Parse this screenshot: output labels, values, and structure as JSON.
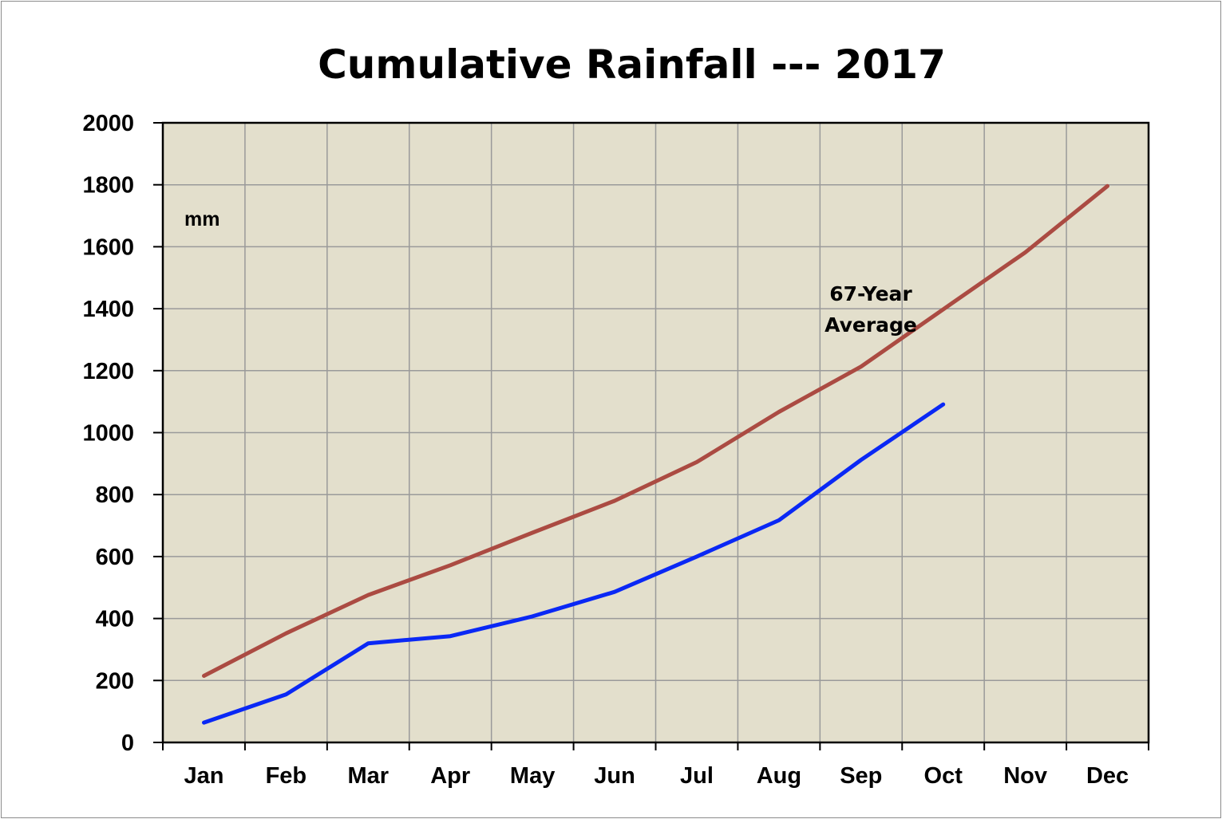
{
  "chart_data": {
    "type": "line",
    "title": "Cumulative Rainfall --- 2017",
    "ylabel": "mm",
    "xlabel": "",
    "categories": [
      "Jan",
      "Feb",
      "Mar",
      "Apr",
      "May",
      "Jun",
      "Jul",
      "Aug",
      "Sep",
      "Oct",
      "Nov",
      "Dec"
    ],
    "ylim": [
      0,
      2000
    ],
    "yticks": [
      0,
      200,
      400,
      600,
      800,
      1000,
      1200,
      1400,
      1600,
      1800,
      2000
    ],
    "grid": true,
    "plot_background": "#e3dfcc",
    "annotation": {
      "lines": [
        "67-Year",
        "Average"
      ]
    },
    "series": [
      {
        "color": "#ab4b42",
        "values": [
          215,
          352,
          476,
          572,
          677,
          780,
          905,
          1067,
          1213,
          1398,
          1582,
          1796
        ]
      },
      {
        "color": "#0a28f5",
        "values": [
          64,
          155,
          320,
          343,
          407,
          486,
          600,
          717,
          912,
          1091,
          null,
          null
        ]
      }
    ]
  }
}
